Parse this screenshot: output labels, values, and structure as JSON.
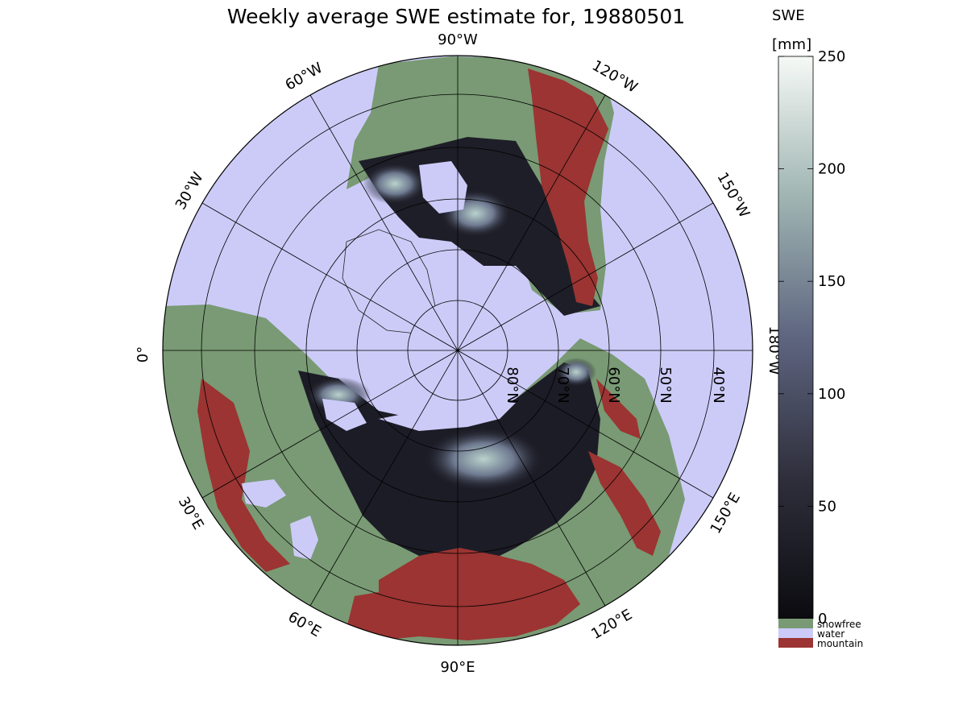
{
  "title": "Weekly average SWE estimate for, 19880501",
  "colorbar": {
    "label_line1": "SWE",
    "label_line2": "[mm]",
    "ticks": [
      0,
      50,
      100,
      150,
      200,
      250
    ],
    "range": [
      0,
      250
    ],
    "colors": {
      "low": "#0b0b10",
      "mid": "#5e6580",
      "high": "#f6f9f6"
    },
    "categories": [
      {
        "name": "snowfree",
        "color": "#799a74"
      },
      {
        "name": "water",
        "color": "#cccbf8"
      },
      {
        "name": "mountain",
        "color": "#9b3432"
      }
    ]
  },
  "map": {
    "projection": "north-polar-stereographic",
    "longitude_labels": [
      {
        "text": "90°W",
        "lon": -90
      },
      {
        "text": "60°W",
        "lon": -60
      },
      {
        "text": "120°W",
        "lon": -120
      },
      {
        "text": "30°W",
        "lon": -30
      },
      {
        "text": "150°W",
        "lon": -150
      },
      {
        "text": "0°",
        "lon": 0
      },
      {
        "text": "180°W",
        "lon": 180
      },
      {
        "text": "30°E",
        "lon": 30
      },
      {
        "text": "150°E",
        "lon": 150
      },
      {
        "text": "60°E",
        "lon": 60
      },
      {
        "text": "120°E",
        "lon": 120
      },
      {
        "text": "90°E",
        "lon": 90
      }
    ],
    "latitude_labels": [
      "80°N",
      "70°N",
      "60°N",
      "50°N",
      "40°N"
    ],
    "colors": {
      "water": "#cccbf8",
      "snowfree": "#799a74",
      "mountain": "#9b3432",
      "snow_low": "#0b0b10",
      "snow_high": "#b9d2cc"
    }
  }
}
